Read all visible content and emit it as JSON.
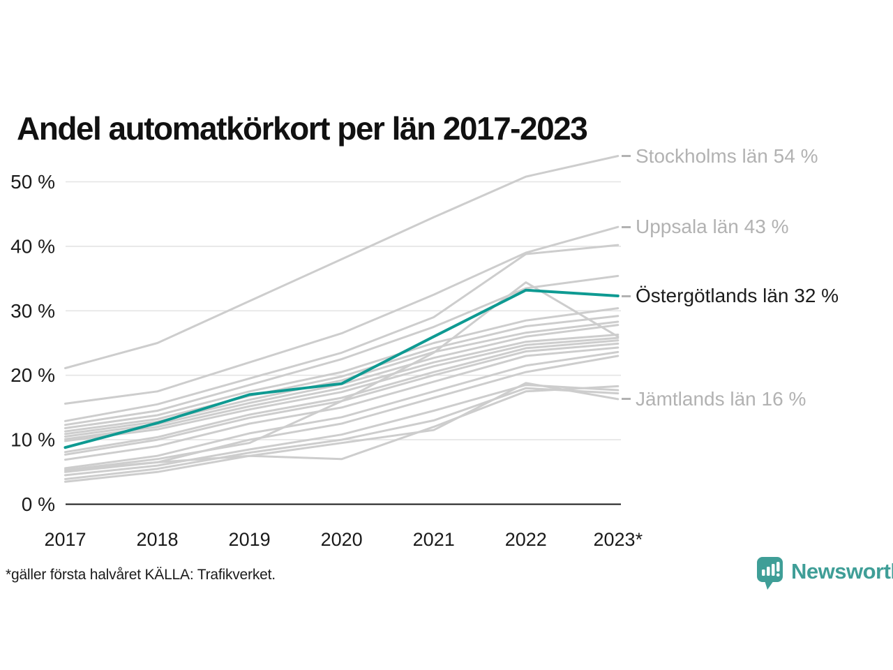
{
  "title": "Andel automatkörkort per län 2017-2023",
  "footer": {
    "note": "*gäller första halvåret KÄLLA: Trafikverket.",
    "brand": "Newsworthy"
  },
  "colors": {
    "highlight": "#0e9a92",
    "gray_line": "#cdcdcd",
    "gridline": "#e4e4e4",
    "axis": "#1a1a1a",
    "tick_text": "#1a1a1a",
    "label_gray": "#b2b2b2",
    "label_dark": "#1c1c1c",
    "logo_teal": "#3f9e97"
  },
  "annotations": [
    {
      "text": "Stockholms län 54 %",
      "value": 54.0,
      "emphasis": false
    },
    {
      "text": "Uppsala län 43 %",
      "value": 43.0,
      "emphasis": false
    },
    {
      "text": "Östergötlands län 32 %",
      "value": 32.3,
      "emphasis": true
    },
    {
      "text": "Jämtlands län 16 %",
      "value": 16.3,
      "emphasis": false
    }
  ],
  "chart_data": {
    "type": "line",
    "title": "Andel automatkörkort per län 2017-2023",
    "x": [
      2017,
      2018,
      2019,
      2020,
      2021,
      2022,
      2023
    ],
    "x_tick_labels": [
      "2017",
      "2018",
      "2019",
      "2020",
      "2021",
      "2022",
      "2023*"
    ],
    "y_ticks": [
      0,
      10,
      20,
      30,
      40,
      50
    ],
    "y_tick_labels": [
      "0 %",
      "10 %",
      "20 %",
      "30 %",
      "40 %",
      "50 %"
    ],
    "ylim": [
      0,
      56
    ],
    "unit": "%",
    "grid": "horizontal",
    "legend": "end-of-line labels, right side",
    "series": [
      {
        "name": "Stockholms län",
        "highlight": false,
        "end_value_label": "54 %",
        "values": [
          21.1,
          25.0,
          31.5,
          38.0,
          44.5,
          50.8,
          54.0
        ]
      },
      {
        "name": "Uppsala län",
        "highlight": false,
        "end_value_label": "43 %",
        "values": [
          15.6,
          17.5,
          22.0,
          26.5,
          32.5,
          39.0,
          43.0
        ]
      },
      {
        "name": "",
        "highlight": false,
        "end_value_label": "",
        "values": [
          12.9,
          15.5,
          19.5,
          23.5,
          29.0,
          38.8,
          40.2
        ]
      },
      {
        "name": "",
        "highlight": false,
        "end_value_label": "",
        "values": [
          12.3,
          14.5,
          18.5,
          22.5,
          27.5,
          33.5,
          35.4
        ]
      },
      {
        "name": "",
        "highlight": false,
        "end_value_label": "",
        "values": [
          5.3,
          7.0,
          9.5,
          16.0,
          23.5,
          34.4,
          26.0
        ]
      },
      {
        "name": "Östergötlands län",
        "highlight": true,
        "end_value_label": "32 %",
        "values": [
          8.8,
          12.6,
          17.0,
          18.7,
          26.0,
          33.2,
          32.3
        ]
      },
      {
        "name": "",
        "highlight": false,
        "end_value_label": "",
        "values": [
          11.8,
          13.8,
          17.5,
          20.5,
          25.0,
          28.5,
          30.4
        ]
      },
      {
        "name": "",
        "highlight": false,
        "end_value_label": "",
        "values": [
          11.3,
          13.2,
          16.8,
          19.8,
          24.2,
          27.6,
          29.2
        ]
      },
      {
        "name": "",
        "highlight": false,
        "end_value_label": "",
        "values": [
          10.9,
          12.8,
          16.2,
          19.2,
          23.6,
          26.6,
          28.3
        ]
      },
      {
        "name": "",
        "highlight": false,
        "end_value_label": "",
        "values": [
          10.5,
          12.4,
          15.7,
          18.6,
          22.7,
          26.0,
          27.8
        ]
      },
      {
        "name": "",
        "highlight": false,
        "end_value_label": "",
        "values": [
          10.1,
          12.0,
          15.2,
          18.0,
          22.0,
          25.2,
          26.3
        ]
      },
      {
        "name": "",
        "highlight": false,
        "end_value_label": "",
        "values": [
          9.8,
          11.6,
          14.7,
          17.4,
          21.4,
          24.7,
          25.8
        ]
      },
      {
        "name": "",
        "highlight": false,
        "end_value_label": "",
        "values": [
          8.1,
          10.4,
          13.9,
          16.5,
          20.5,
          24.2,
          25.4
        ]
      },
      {
        "name": "",
        "highlight": false,
        "end_value_label": "",
        "values": [
          7.7,
          10.0,
          13.4,
          16.0,
          20.0,
          23.7,
          24.9
        ]
      },
      {
        "name": "",
        "highlight": false,
        "end_value_label": "",
        "values": [
          6.9,
          9.0,
          12.5,
          15.0,
          19.0,
          23.0,
          24.3
        ]
      },
      {
        "name": "",
        "highlight": false,
        "end_value_label": "",
        "values": [
          5.6,
          7.5,
          11.0,
          13.5,
          17.5,
          21.5,
          23.6
        ]
      },
      {
        "name": "",
        "highlight": false,
        "end_value_label": "",
        "values": [
          5.0,
          6.5,
          10.0,
          12.5,
          16.5,
          20.5,
          23.0
        ]
      },
      {
        "name": "",
        "highlight": false,
        "end_value_label": "",
        "values": [
          5.3,
          6.5,
          7.5,
          7.0,
          12.0,
          17.5,
          18.3
        ]
      },
      {
        "name": "",
        "highlight": false,
        "end_value_label": "",
        "values": [
          4.5,
          6.0,
          8.5,
          10.8,
          14.5,
          18.5,
          17.7
        ]
      },
      {
        "name": "",
        "highlight": false,
        "end_value_label": "",
        "values": [
          3.9,
          5.5,
          8.0,
          10.0,
          13.0,
          18.0,
          17.2
        ]
      },
      {
        "name": "Jämtlands län",
        "highlight": false,
        "end_value_label": "16 %",
        "values": [
          3.5,
          5.0,
          7.5,
          9.5,
          11.5,
          18.8,
          16.3
        ]
      }
    ]
  }
}
